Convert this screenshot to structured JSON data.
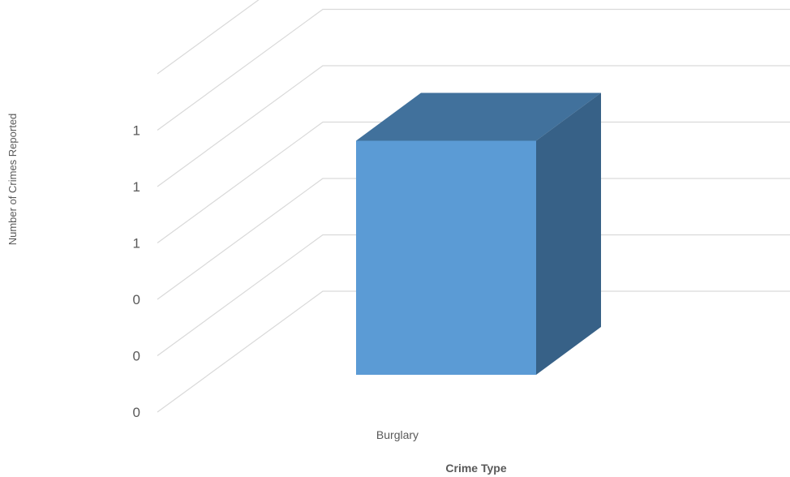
{
  "chart_data": {
    "type": "bar",
    "categories": [
      "Burglary"
    ],
    "values": [
      1
    ],
    "xlabel": "Crime Type",
    "ylabel": "Number of Crimes Reported",
    "y_tick_labels": [
      "0",
      "0",
      "0",
      "1",
      "1",
      "1"
    ],
    "ylim": [
      0,
      1.2
    ],
    "grid": true,
    "colors": {
      "front": "#5b9bd5",
      "top": "#41719c",
      "side": "#376187",
      "grid": "#d9d9d9",
      "text": "#595959"
    }
  }
}
